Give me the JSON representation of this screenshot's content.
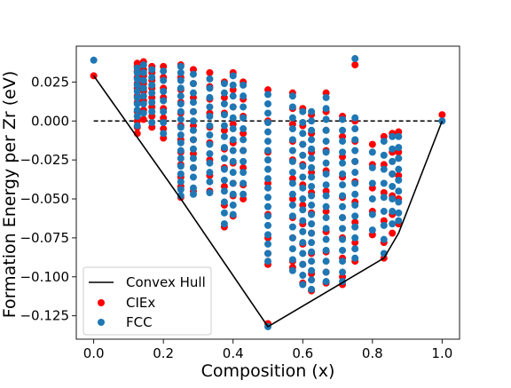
{
  "chart_data": {
    "type": "scatter",
    "xlabel": "Composition (x)",
    "ylabel": "Formation Energy per Zr (eV)",
    "xlim": [
      -0.05,
      1.05
    ],
    "ylim": [
      -0.14,
      0.048
    ],
    "xticks": [
      0.0,
      0.2,
      0.4,
      0.6,
      0.8,
      1.0
    ],
    "xtick_labels": [
      "0.0",
      "0.2",
      "0.4",
      "0.6",
      "0.8",
      "1.0"
    ],
    "yticks": [
      0.025,
      0.0,
      -0.025,
      -0.05,
      -0.075,
      -0.1,
      -0.125
    ],
    "ytick_labels": [
      "0.025",
      "0.000",
      "−0.025",
      "−0.050",
      "−0.075",
      "−0.100",
      "−0.125"
    ],
    "grid": false,
    "legend_position": "lower-left",
    "reference_line": {
      "y": 0.0,
      "style": "dashed",
      "color": "#000000"
    },
    "series": [
      {
        "name": "Convex Hull",
        "kind": "line",
        "color": "#000000",
        "x": [
          0.0,
          0.25,
          0.5,
          0.833,
          0.875,
          1.0
        ],
        "y": [
          0.029,
          -0.05,
          -0.132,
          -0.088,
          -0.072,
          0.0
        ]
      },
      {
        "name": "CIEx",
        "kind": "scatter",
        "color": "#ff0000",
        "columns": [
          {
            "x": 0.0,
            "y": [
              0.029
            ]
          },
          {
            "x": 0.125,
            "y": [
              0.037,
              0.035,
              0.032,
              0.028,
              0.024,
              0.021,
              0.016,
              0.012,
              0.006,
              0.0,
              -0.004,
              -0.008
            ]
          },
          {
            "x": 0.143,
            "y": [
              0.038,
              0.033,
              0.029,
              0.024,
              0.019,
              0.013,
              0.007,
              0.001
            ]
          },
          {
            "x": 0.167,
            "y": [
              0.035,
              0.031,
              0.026,
              0.021,
              0.015,
              0.009,
              0.003,
              -0.004
            ]
          },
          {
            "x": 0.2,
            "y": [
              0.035,
              0.028,
              0.021,
              0.015,
              0.008,
              0.002,
              -0.005,
              -0.011
            ]
          },
          {
            "x": 0.25,
            "y": [
              0.036,
              0.028,
              0.02,
              0.012,
              0.005,
              -0.003,
              -0.012,
              -0.02,
              -0.028,
              -0.036,
              -0.042,
              -0.049
            ]
          },
          {
            "x": 0.286,
            "y": [
              0.033,
              0.024,
              0.015,
              0.006,
              -0.003,
              -0.012,
              -0.021,
              -0.03,
              -0.045
            ]
          },
          {
            "x": 0.333,
            "y": [
              0.031,
              0.022,
              0.014,
              0.005,
              -0.004,
              -0.014,
              -0.025,
              -0.035,
              -0.045
            ]
          },
          {
            "x": 0.375,
            "y": [
              0.025,
              0.015,
              0.005,
              -0.006,
              -0.018,
              -0.03,
              -0.042,
              -0.054,
              -0.068
            ]
          },
          {
            "x": 0.4,
            "y": [
              0.031,
              0.02,
              0.009,
              -0.002,
              -0.014,
              -0.027,
              -0.04,
              -0.048,
              -0.061
            ]
          },
          {
            "x": 0.429,
            "y": [
              0.025,
              0.014,
              0.003,
              -0.008,
              -0.019,
              -0.03,
              -0.041,
              -0.05
            ]
          },
          {
            "x": 0.5,
            "y": [
              0.02,
              0.0,
              -0.02,
              -0.04,
              -0.06,
              -0.075,
              -0.085,
              -0.092,
              -0.13
            ]
          },
          {
            "x": 0.571,
            "y": [
              0.018,
              0.008,
              -0.002,
              -0.013,
              -0.025,
              -0.037,
              -0.05,
              -0.062,
              -0.075,
              -0.09,
              -0.094
            ]
          },
          {
            "x": 0.6,
            "y": [
              0.008,
              -0.003,
              -0.015,
              -0.028,
              -0.041,
              -0.054,
              -0.066,
              -0.079,
              -0.092,
              -0.104
            ]
          },
          {
            "x": 0.625,
            "y": [
              0.004,
              -0.008,
              -0.02,
              -0.033,
              -0.046,
              -0.059,
              -0.072,
              -0.085,
              -0.098,
              -0.109
            ]
          },
          {
            "x": 0.667,
            "y": [
              0.018,
              0.006,
              -0.006,
              -0.019,
              -0.032,
              -0.045,
              -0.058,
              -0.071,
              -0.084,
              -0.097,
              -0.104
            ]
          },
          {
            "x": 0.714,
            "y": [
              0.003,
              -0.01,
              -0.023,
              -0.036,
              -0.049,
              -0.062,
              -0.075,
              -0.088,
              -0.1,
              -0.105
            ]
          },
          {
            "x": 0.75,
            "y": [
              0.036,
              0.0,
              -0.013,
              -0.026,
              -0.039,
              -0.052,
              -0.065,
              -0.078,
              -0.09
            ]
          },
          {
            "x": 0.8,
            "y": [
              -0.015,
              -0.028,
              -0.043,
              -0.058,
              -0.073
            ]
          },
          {
            "x": 0.833,
            "y": [
              -0.01,
              -0.028,
              -0.046,
              -0.064,
              -0.078,
              -0.088
            ]
          },
          {
            "x": 0.857,
            "y": [
              -0.008,
              -0.02,
              -0.034,
              -0.048,
              -0.06,
              -0.072
            ]
          },
          {
            "x": 0.875,
            "y": [
              -0.007,
              -0.02,
              -0.035,
              -0.05,
              -0.066
            ]
          },
          {
            "x": 1.0,
            "y": [
              0.004
            ]
          }
        ]
      },
      {
        "name": "FCC",
        "kind": "scatter",
        "color": "#1f77b4",
        "columns": [
          {
            "x": 0.0,
            "y": [
              0.039
            ]
          },
          {
            "x": 0.125,
            "y": [
              0.034,
              0.031,
              0.027,
              0.023,
              0.019,
              0.015,
              0.011,
              0.007,
              0.003,
              -0.003
            ]
          },
          {
            "x": 0.143,
            "y": [
              0.036,
              0.031,
              0.026,
              0.021,
              0.016,
              0.011,
              0.005
            ]
          },
          {
            "x": 0.167,
            "y": [
              0.033,
              0.028,
              0.023,
              0.018,
              0.012,
              0.006,
              -0.001
            ]
          },
          {
            "x": 0.2,
            "y": [
              0.032,
              0.026,
              0.019,
              0.013,
              0.006,
              -0.001,
              -0.008
            ]
          },
          {
            "x": 0.25,
            "y": [
              0.035,
              0.031,
              0.026,
              0.021,
              0.016,
              0.011,
              0.006,
              0.001,
              -0.004,
              -0.009,
              -0.014,
              -0.019,
              -0.024,
              -0.029,
              -0.034,
              -0.039,
              -0.044,
              -0.048
            ]
          },
          {
            "x": 0.286,
            "y": [
              0.03,
              0.024,
              0.018,
              0.012,
              0.006,
              0.0,
              -0.006,
              -0.012,
              -0.018,
              -0.024,
              -0.03,
              -0.036,
              -0.043,
              -0.047
            ]
          },
          {
            "x": 0.333,
            "y": [
              0.027,
              0.021,
              0.015,
              0.009,
              0.003,
              -0.003,
              -0.009,
              -0.015,
              -0.021,
              -0.027,
              -0.033,
              -0.039,
              -0.046
            ]
          },
          {
            "x": 0.375,
            "y": [
              0.024,
              0.018,
              0.011,
              0.004,
              -0.003,
              -0.01,
              -0.017,
              -0.024,
              -0.031,
              -0.038,
              -0.045,
              -0.052,
              -0.059,
              -0.066
            ]
          },
          {
            "x": 0.4,
            "y": [
              0.029,
              0.023,
              0.016,
              0.009,
              0.002,
              -0.005,
              -0.012,
              -0.019,
              -0.026,
              -0.033,
              -0.04,
              -0.047,
              -0.054,
              -0.06
            ]
          },
          {
            "x": 0.429,
            "y": [
              0.023,
              0.016,
              0.009,
              0.002,
              -0.005,
              -0.012,
              -0.019,
              -0.026,
              -0.033,
              -0.04,
              -0.047
            ]
          },
          {
            "x": 0.5,
            "y": [
              0.017,
              0.011,
              0.005,
              -0.001,
              -0.007,
              -0.013,
              -0.019,
              -0.025,
              -0.031,
              -0.037,
              -0.043,
              -0.049,
              -0.055,
              -0.061,
              -0.067,
              -0.073,
              -0.079,
              -0.085,
              -0.09,
              -0.132
            ]
          },
          {
            "x": 0.571,
            "y": [
              0.016,
              0.009,
              0.002,
              -0.005,
              -0.012,
              -0.019,
              -0.026,
              -0.033,
              -0.04,
              -0.047,
              -0.054,
              -0.061,
              -0.068,
              -0.075,
              -0.082,
              -0.089,
              -0.096
            ]
          },
          {
            "x": 0.6,
            "y": [
              0.006,
              -0.001,
              -0.008,
              -0.015,
              -0.022,
              -0.029,
              -0.036,
              -0.043,
              -0.05,
              -0.057,
              -0.064,
              -0.071,
              -0.078,
              -0.085,
              -0.092,
              -0.099,
              -0.105
            ]
          },
          {
            "x": 0.625,
            "y": [
              0.006,
              0.0,
              -0.006,
              -0.012,
              -0.018,
              -0.024,
              -0.03,
              -0.036,
              -0.042,
              -0.048,
              -0.054,
              -0.06,
              -0.066,
              -0.072,
              -0.078,
              -0.084,
              -0.09,
              -0.096,
              -0.102,
              -0.108
            ]
          },
          {
            "x": 0.667,
            "y": [
              0.015,
              0.008,
              0.001,
              -0.006,
              -0.013,
              -0.02,
              -0.027,
              -0.034,
              -0.041,
              -0.048,
              -0.055,
              -0.062,
              -0.069,
              -0.076,
              -0.083,
              -0.09,
              -0.097,
              -0.103
            ]
          },
          {
            "x": 0.714,
            "y": [
              0.001,
              -0.006,
              -0.013,
              -0.02,
              -0.027,
              -0.034,
              -0.041,
              -0.048,
              -0.055,
              -0.062,
              -0.069,
              -0.076,
              -0.083,
              -0.09,
              -0.097,
              -0.103
            ]
          },
          {
            "x": 0.75,
            "y": [
              0.04,
              0.002,
              -0.005,
              -0.012,
              -0.019,
              -0.026,
              -0.033,
              -0.04,
              -0.047,
              -0.054,
              -0.061,
              -0.068,
              -0.075,
              -0.082,
              -0.088
            ]
          },
          {
            "x": 0.8,
            "y": [
              -0.02,
              -0.03,
              -0.04,
              -0.05,
              -0.06,
              -0.07
            ]
          },
          {
            "x": 0.833,
            "y": [
              -0.013,
              -0.022,
              -0.031,
              -0.04,
              -0.049,
              -0.058,
              -0.067,
              -0.076,
              -0.085
            ]
          },
          {
            "x": 0.857,
            "y": [
              -0.01,
              -0.018,
              -0.026,
              -0.034,
              -0.042,
              -0.05,
              -0.058,
              -0.066
            ]
          },
          {
            "x": 0.875,
            "y": [
              -0.01,
              -0.017,
              -0.024,
              -0.031,
              -0.038,
              -0.045,
              -0.052,
              -0.059,
              -0.064
            ]
          },
          {
            "x": 1.0,
            "y": [
              0.0
            ]
          }
        ]
      }
    ]
  }
}
